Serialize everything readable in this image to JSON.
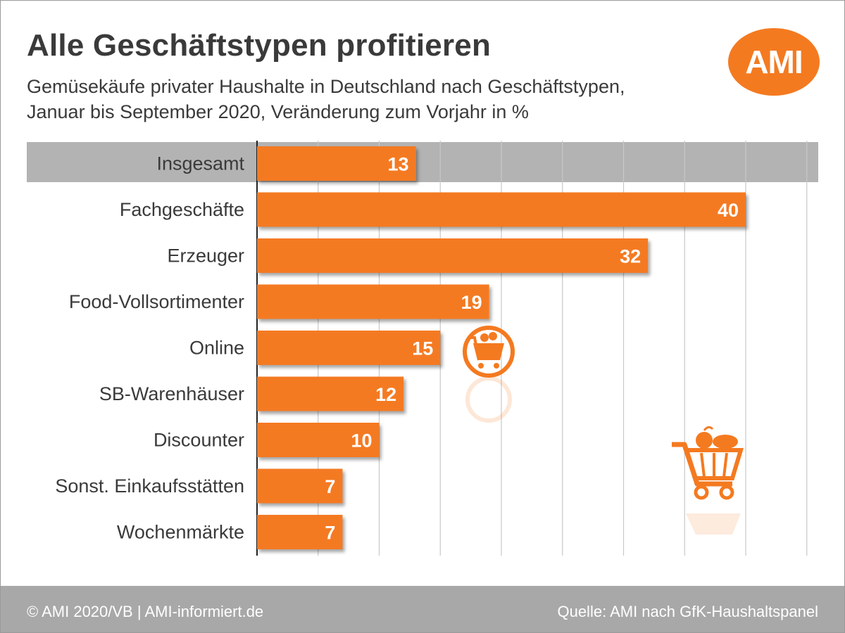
{
  "header": {
    "title": "Alle Geschäftstypen profitieren",
    "subtitle_line1": "Gemüsekäufe privater Haushalte in Deutschland nach Geschäftstypen,",
    "subtitle_line2": "Januar bis September 2020, Veränderung zum Vorjahr in %"
  },
  "logo": {
    "text": "AMI",
    "color": "#f47a20"
  },
  "chart_data": {
    "type": "bar",
    "orientation": "horizontal",
    "title": "Alle Geschäftstypen profitieren",
    "categories": [
      "Insgesamt",
      "Fachgeschäfte",
      "Erzeuger",
      "Food-Vollsortimenter",
      "Online",
      "SB-Warenhäuser",
      "Discounter",
      "Sonst. Einkaufsstätten",
      "Wochenmärkte"
    ],
    "values": [
      13,
      40,
      32,
      19,
      15,
      12,
      10,
      7,
      7
    ],
    "xlim": [
      0,
      45
    ],
    "grid": true,
    "highlighted_category": "Insgesamt",
    "bar_color": "#f47a20",
    "highlight_band_color": "#b3b3b3"
  },
  "icons": [
    "online-shopping-cart-icon",
    "vegetable-shopping-cart-icon"
  ],
  "footer": {
    "left": "© AMI 2020/VB | AMI-informiert.de",
    "right": "Quelle: AMI nach GfK-Haushaltspanel"
  }
}
